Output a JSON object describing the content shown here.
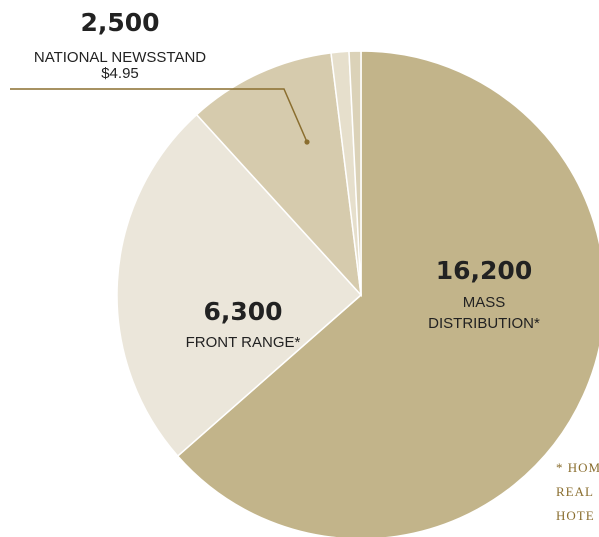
{
  "chart_data": {
    "type": "pie",
    "title": "",
    "slices": [
      {
        "value": 16200,
        "value_label": "16,200",
        "label_lines": [
          "MASS",
          "DISTRIBUTION*"
        ],
        "color": "#c2b48a"
      },
      {
        "value": 6300,
        "value_label": "6,300",
        "label_lines": [
          "FRONT RANGE*"
        ],
        "color": "#ebe6da"
      },
      {
        "value": 2500,
        "value_label": "2,500",
        "label_lines": [
          "NATIONAL NEWSSTAND",
          "$4.95"
        ],
        "color": "#d6cbad"
      },
      {
        "value": 300,
        "value_label": "",
        "label_lines": [],
        "color": "#e6dfcc"
      },
      {
        "value": 200,
        "value_label": "",
        "label_lines": [],
        "color": "#dbd2b8"
      }
    ],
    "footnote_lines": [
      "* HOM",
      "REAL",
      "HOTE"
    ],
    "colors": {
      "text": "#222222",
      "leader": "#8a6e2f",
      "footnote": "#8a6e2f",
      "separator": "#ffffff"
    }
  }
}
